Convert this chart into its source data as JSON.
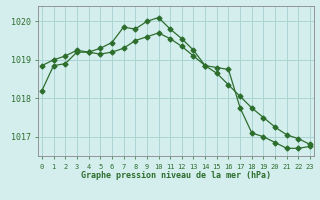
{
  "line1_x": [
    0,
    1,
    2,
    3,
    4,
    5,
    6,
    7,
    8,
    9,
    10,
    11,
    12,
    13,
    14,
    15,
    16,
    17,
    18,
    19,
    20,
    21,
    22,
    23
  ],
  "line1_y": [
    1018.2,
    1018.85,
    1018.9,
    1019.2,
    1019.2,
    1019.3,
    1019.45,
    1019.85,
    1019.8,
    1020.0,
    1020.1,
    1019.8,
    1019.55,
    1019.25,
    1018.85,
    1018.8,
    1018.75,
    1017.75,
    1017.1,
    1017.0,
    1016.85,
    1016.7,
    1016.7,
    1016.75
  ],
  "line2_x": [
    0,
    1,
    2,
    3,
    4,
    5,
    6,
    7,
    8,
    9,
    10,
    11,
    12,
    13,
    14,
    15,
    16,
    17,
    18,
    19,
    20,
    21,
    22,
    23
  ],
  "line2_y": [
    1018.85,
    1019.0,
    1019.1,
    1019.25,
    1019.2,
    1019.15,
    1019.2,
    1019.3,
    1019.5,
    1019.6,
    1019.7,
    1019.55,
    1019.35,
    1019.1,
    1018.85,
    1018.65,
    1018.35,
    1018.05,
    1017.75,
    1017.5,
    1017.25,
    1017.05,
    1016.95,
    1016.8
  ],
  "line_color": "#2d6e2d",
  "bg_color": "#d4eeee",
  "grid_color": "#aad4d4",
  "xlabel": "Graphe pression niveau de la mer (hPa)",
  "ylim": [
    1016.5,
    1020.4
  ],
  "yticks": [
    1017,
    1018,
    1019,
    1020
  ],
  "xticks": [
    0,
    1,
    2,
    3,
    4,
    5,
    6,
    7,
    8,
    9,
    10,
    11,
    12,
    13,
    14,
    15,
    16,
    17,
    18,
    19,
    20,
    21,
    22,
    23
  ],
  "marker_size": 2.5,
  "line_width": 0.9
}
